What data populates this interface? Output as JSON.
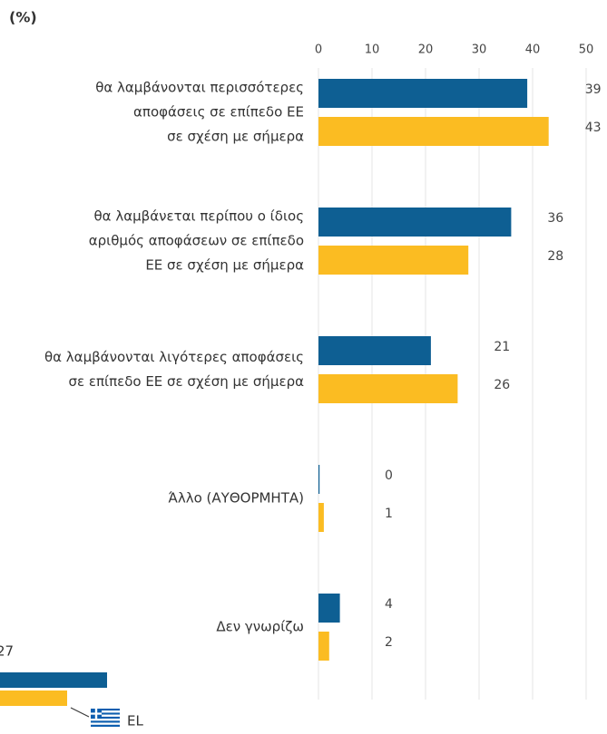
{
  "chart_data": {
    "type": "bar",
    "orientation": "horizontal",
    "title": "(%)",
    "categories": [
      [
        "θα λαμβάνονται περισσότερες",
        "αποφάσεις σε επίπεδο ΕΕ",
        "σε σχέση με σήμερα"
      ],
      [
        "θα λαμβάνεται περίπου ο ίδιος",
        "αριθμός αποφάσεων σε επίπεδο",
        "ΕΕ σε σχέση με σήμερα"
      ],
      [
        "θα λαμβάνονται λιγότερες αποφάσεις",
        "σε επίπεδο ΕΕ σε σχέση με σήμερα"
      ],
      [
        "Άλλο (ΑΥΘΟΡΜΗΤΑ)"
      ],
      [
        "Δεν γνωρίζω"
      ]
    ],
    "series": [
      {
        "name": "27",
        "color": "#0e5f93",
        "values": [
          39,
          36,
          21,
          0,
          4
        ]
      },
      {
        "name": "EL",
        "color": "#fbbc22",
        "values": [
          43,
          28,
          26,
          1,
          2
        ]
      }
    ],
    "xlim": [
      0,
      50
    ],
    "xticks": [
      0,
      10,
      20,
      30,
      40,
      50
    ],
    "grid": true
  }
}
